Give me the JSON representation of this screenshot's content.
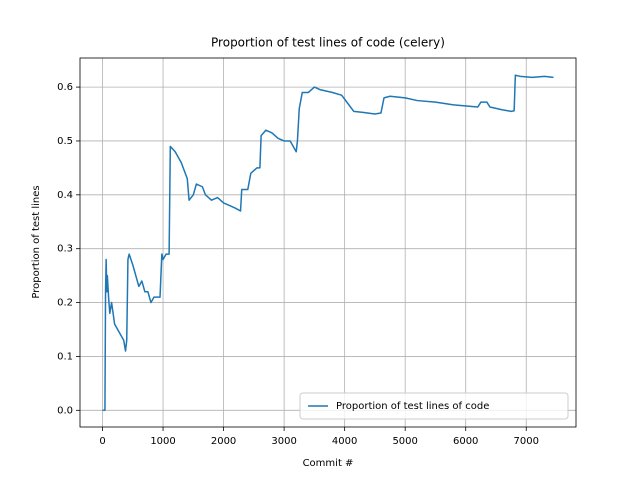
{
  "chart_data": {
    "type": "line",
    "title": "Proportion of test lines of code (celery)",
    "xlabel": "Commit #",
    "ylabel": "Proportion of test lines",
    "x": [
      0,
      30,
      40,
      50,
      60,
      70,
      80,
      100,
      120,
      150,
      200,
      300,
      350,
      380,
      400,
      420,
      440,
      500,
      550,
      600,
      650,
      700,
      750,
      800,
      850,
      950,
      980,
      1000,
      1050,
      1100,
      1120,
      1200,
      1300,
      1400,
      1430,
      1500,
      1550,
      1650,
      1700,
      1800,
      1900,
      2000,
      2100,
      2200,
      2280,
      2300,
      2400,
      2450,
      2550,
      2600,
      2620,
      2700,
      2800,
      2900,
      3000,
      3100,
      3150,
      3200,
      3220,
      3250,
      3300,
      3400,
      3500,
      3600,
      3800,
      3950,
      4050,
      4150,
      4300,
      4500,
      4600,
      4650,
      4750,
      5000,
      5200,
      5500,
      5800,
      6200,
      6250,
      6350,
      6400,
      6600,
      6750,
      6800,
      6820,
      6900,
      7100,
      7300,
      7450
    ],
    "series": [
      {
        "name": "Proportion of test lines of code",
        "color": "#1f77b4",
        "values": [
          0,
          0,
          0,
          0.22,
          0.28,
          0.22,
          0.25,
          0.21,
          0.18,
          0.2,
          0.16,
          0.14,
          0.13,
          0.11,
          0.13,
          0.28,
          0.29,
          0.27,
          0.25,
          0.23,
          0.24,
          0.22,
          0.22,
          0.2,
          0.21,
          0.21,
          0.29,
          0.28,
          0.29,
          0.29,
          0.49,
          0.48,
          0.46,
          0.43,
          0.39,
          0.4,
          0.42,
          0.415,
          0.4,
          0.39,
          0.395,
          0.385,
          0.38,
          0.375,
          0.37,
          0.41,
          0.41,
          0.44,
          0.45,
          0.45,
          0.51,
          0.52,
          0.515,
          0.505,
          0.5,
          0.5,
          0.49,
          0.48,
          0.5,
          0.56,
          0.59,
          0.59,
          0.6,
          0.595,
          0.59,
          0.585,
          0.57,
          0.555,
          0.553,
          0.55,
          0.552,
          0.58,
          0.583,
          0.58,
          0.575,
          0.572,
          0.567,
          0.563,
          0.572,
          0.572,
          0.563,
          0.558,
          0.555,
          0.556,
          0.622,
          0.62,
          0.618,
          0.62,
          0.618
        ]
      }
    ],
    "xlim": [
      -372,
      7822
    ],
    "xticks": [
      0,
      1000,
      2000,
      3000,
      4000,
      5000,
      6000,
      7000
    ],
    "ylim": [
      -0.031,
      0.654
    ],
    "yticks": [
      {
        "value": 0,
        "label": "0.0"
      },
      0.1,
      0.2,
      0.3,
      0.4,
      0.5,
      0.6
    ],
    "grid": true,
    "legend": "lower right"
  }
}
